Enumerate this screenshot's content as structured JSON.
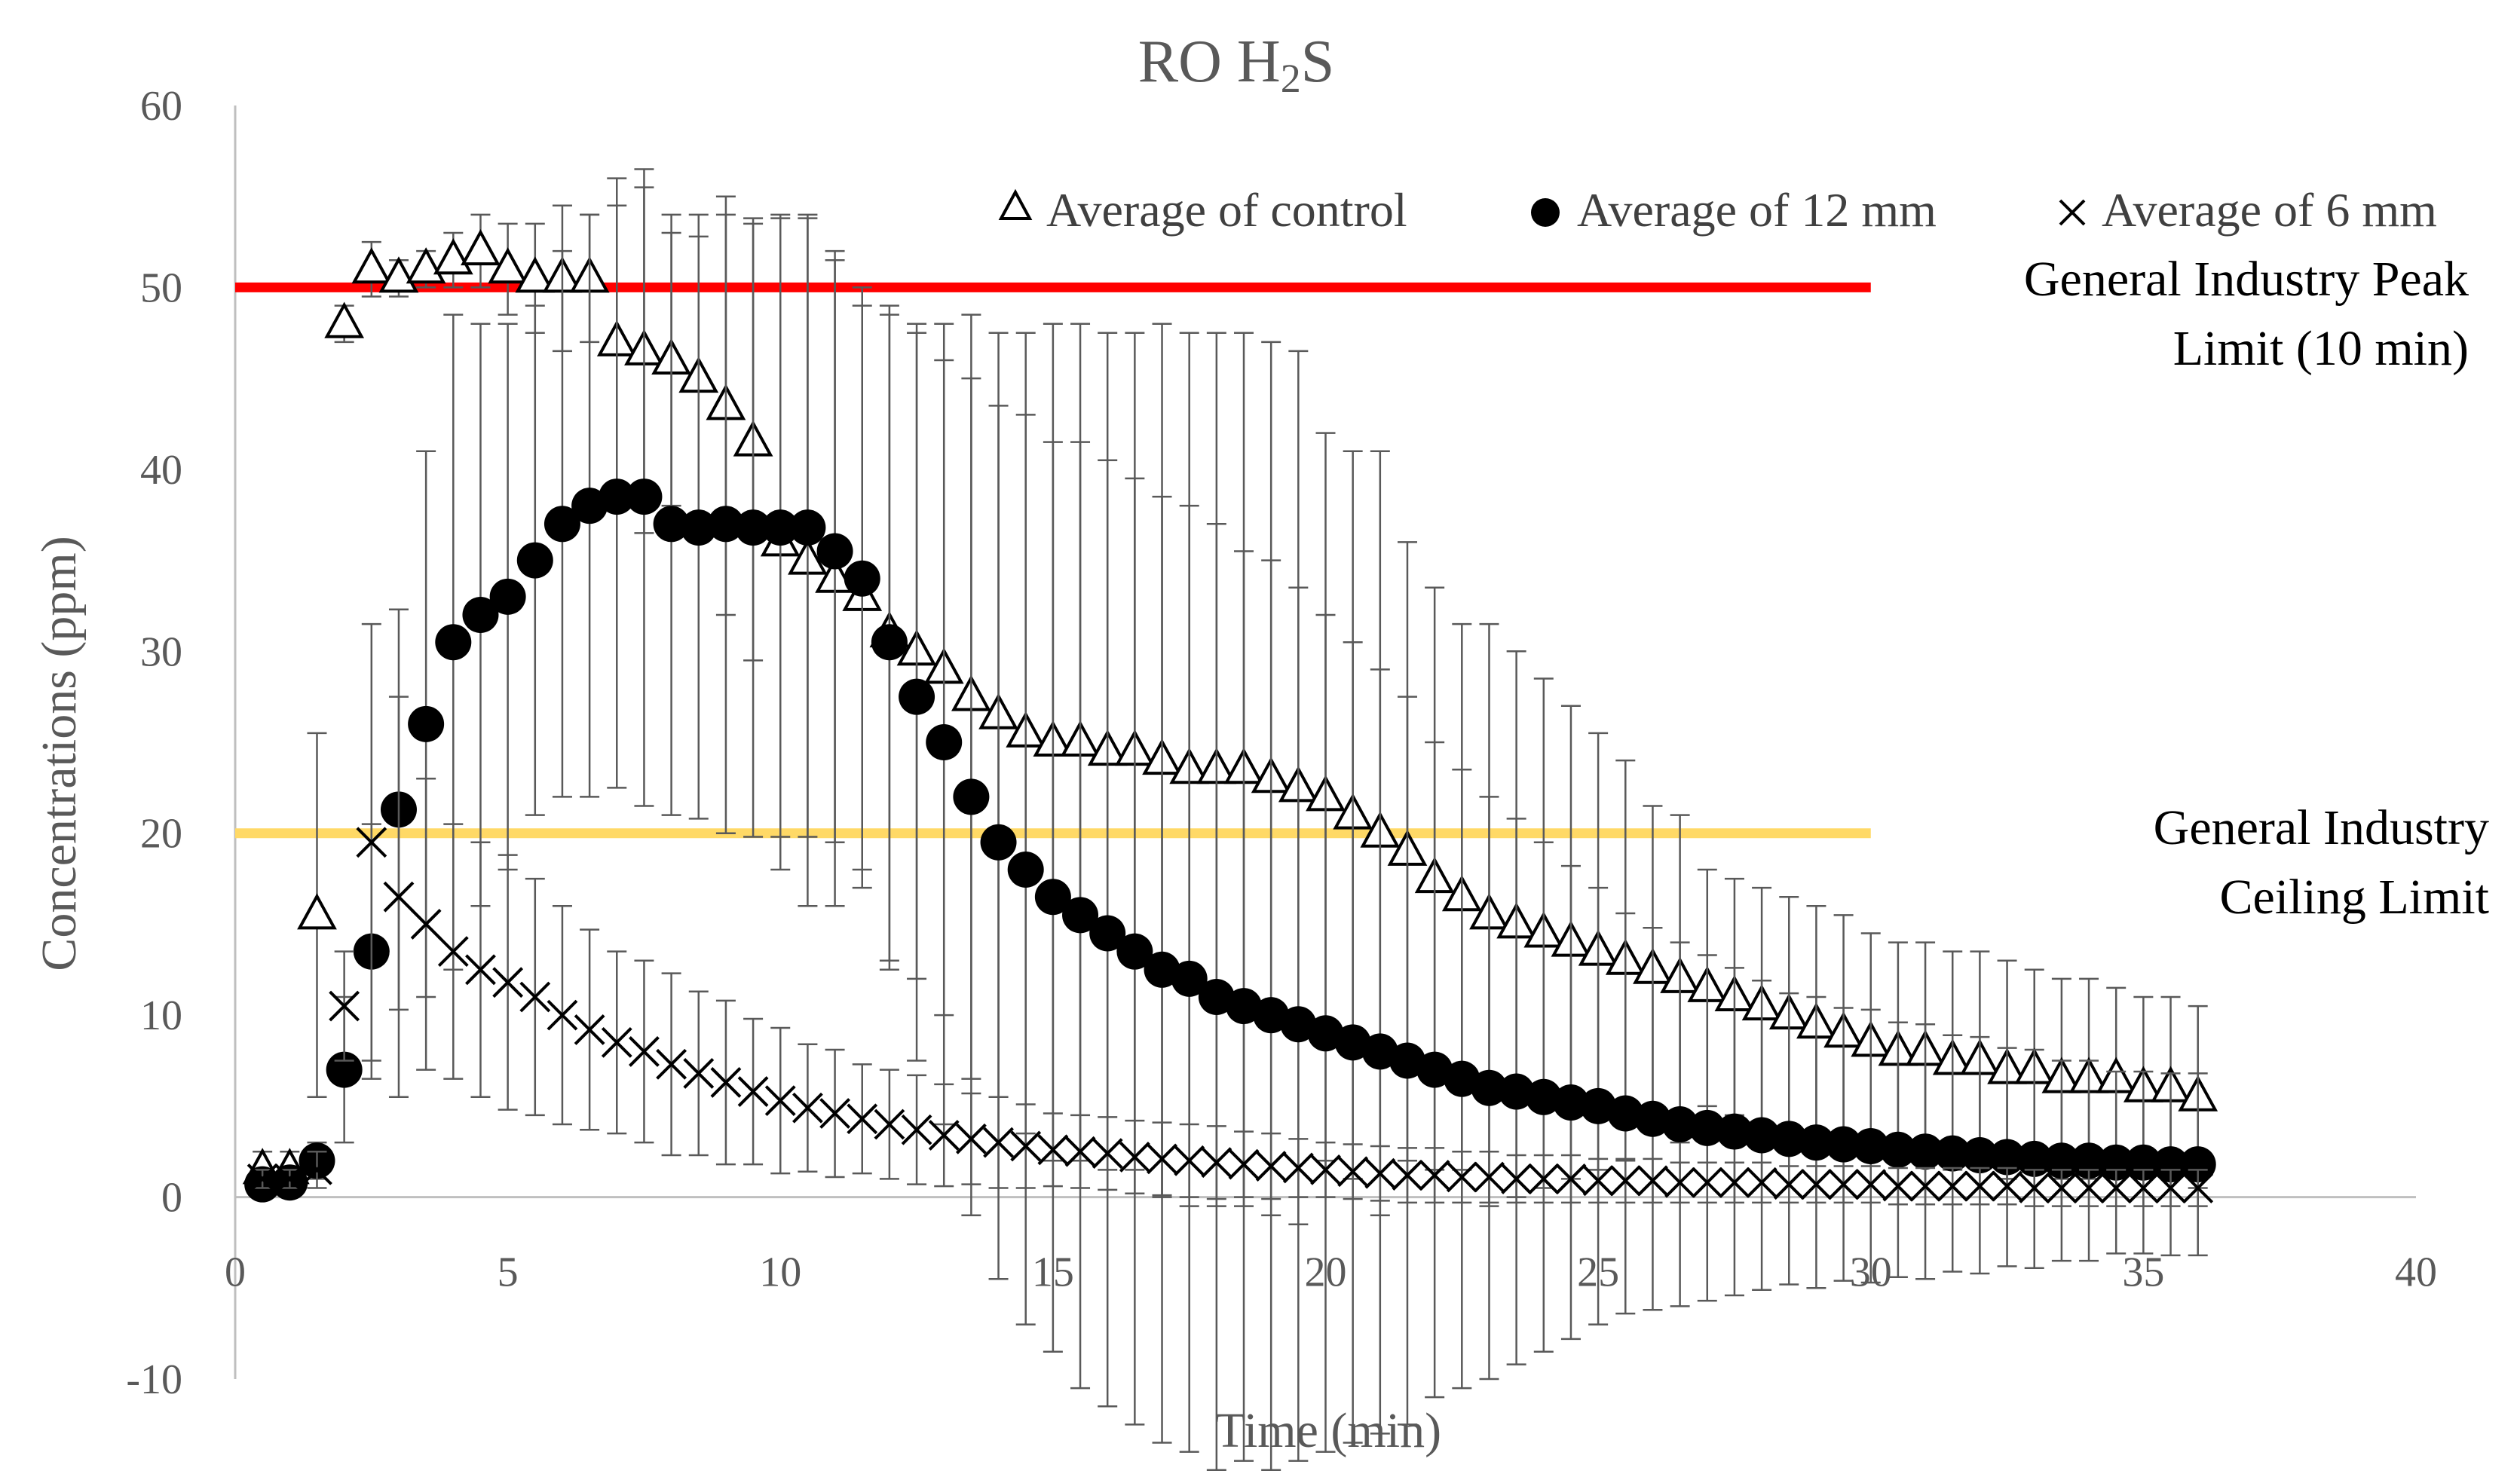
{
  "chart_data": {
    "type": "scatter",
    "title": "RO H",
    "title_subscript": "2",
    "title_suffix": "S",
    "xlabel": "Time (min)",
    "ylabel": "Concentrations (ppm)",
    "xlim": [
      0,
      40
    ],
    "ylim": [
      -10,
      60
    ],
    "xticks": [
      0,
      5,
      10,
      15,
      20,
      25,
      30,
      35,
      40
    ],
    "yticks": [
      -10,
      0,
      10,
      20,
      30,
      40,
      50,
      60
    ],
    "grid": false,
    "legend_position": "top-right",
    "reference_lines": [
      {
        "name": "general-industry-peak-limit",
        "y": 50,
        "x_range": [
          0,
          30
        ],
        "color": "#ff0000",
        "label_lines": [
          "General Industry Peak",
          "Limit (10 min)"
        ]
      },
      {
        "name": "general-industry-ceiling-limit",
        "y": 20,
        "x_range": [
          0,
          30
        ],
        "color": "#ffd966",
        "label_lines": [
          "General Industry",
          "Ceiling Limit"
        ]
      }
    ],
    "series": [
      {
        "name": "Average of control",
        "marker": "triangle",
        "x": [
          0.5,
          1,
          1.5,
          2,
          2.5,
          3,
          3.5,
          4,
          4.5,
          5,
          5.5,
          6,
          6.5,
          7,
          7.5,
          8,
          8.5,
          9,
          9.5,
          10,
          10.5,
          11,
          11.5,
          12,
          12.5,
          13,
          13.5,
          14,
          14.5,
          15,
          15.5,
          16,
          16.5,
          17,
          17.5,
          18,
          18.5,
          19,
          19.5,
          20,
          20.5,
          21,
          21.5,
          22,
          22.5,
          23,
          23.5,
          24,
          24.5,
          25,
          25.5,
          26,
          26.5,
          27,
          27.5,
          28,
          28.5,
          29,
          29.5,
          30,
          30.5,
          31,
          31.5,
          32,
          32.5,
          33,
          33.5,
          34,
          34.5,
          35,
          35.5,
          36
        ],
        "y": [
          1.5,
          1.5,
          15.5,
          48,
          51,
          50.5,
          51,
          51.5,
          52,
          51,
          50.5,
          50.5,
          50.5,
          47,
          46.5,
          46,
          45,
          43.5,
          41.5,
          36,
          35,
          34,
          33,
          31,
          30,
          29,
          27.5,
          26.5,
          25.5,
          25,
          25,
          24.5,
          24.5,
          24,
          23.5,
          23.5,
          23.5,
          23,
          22.5,
          22,
          21,
          20,
          19,
          17.5,
          16.5,
          15.5,
          15,
          14.5,
          14,
          13.5,
          13,
          12.5,
          12,
          11.5,
          11,
          10.5,
          10,
          9.5,
          9,
          8.5,
          8,
          8,
          7.5,
          7.5,
          7,
          7,
          6.5,
          6.5,
          6.5,
          6,
          6,
          5.5
        ],
        "err": [
          1,
          1,
          10,
          1,
          1.5,
          1,
          1,
          1.5,
          2,
          2.5,
          3,
          4,
          3.5,
          9,
          10,
          8,
          9,
          11.5,
          12,
          18,
          19,
          18,
          16,
          18,
          18,
          19,
          21,
          21,
          22,
          23,
          23,
          23,
          23,
          24,
          24,
          24,
          24,
          24,
          24,
          20,
          20,
          21,
          17,
          16,
          15,
          16,
          15,
          14,
          13,
          12,
          11,
          9,
          9,
          6.5,
          6.5,
          6.5,
          6.5,
          6.5,
          6.5,
          6,
          6,
          6,
          6,
          6,
          6,
          5.5,
          5.5,
          5.5,
          5,
          5,
          5,
          5
        ]
      },
      {
        "name": "Average of 12 mm",
        "marker": "circle",
        "x": [
          0.5,
          1,
          1.5,
          2,
          2.5,
          3,
          3.5,
          4,
          4.5,
          5,
          5.5,
          6,
          6.5,
          7,
          7.5,
          8,
          8.5,
          9,
          9.5,
          10,
          10.5,
          11,
          11.5,
          12,
          12.5,
          13,
          13.5,
          14,
          14.5,
          15,
          15.5,
          16,
          16.5,
          17,
          17.5,
          18,
          18.5,
          19,
          19.5,
          20,
          20.5,
          21,
          21.5,
          22,
          22.5,
          23,
          23.5,
          24,
          24.5,
          25,
          25.5,
          26,
          26.5,
          27,
          27.5,
          28,
          28.5,
          29,
          29.5,
          30,
          30.5,
          31,
          31.5,
          32,
          32.5,
          33,
          33.5,
          34,
          34.5,
          35,
          35.5,
          36
        ],
        "y": [
          0.7,
          0.8,
          2,
          7,
          13.5,
          21.3,
          26,
          30.5,
          32,
          33,
          35,
          37,
          38,
          38.5,
          38.5,
          37,
          36.8,
          37,
          36.8,
          36.8,
          36.8,
          35.5,
          34,
          30.5,
          27.5,
          25,
          22,
          19.5,
          18,
          16.5,
          15.5,
          14.5,
          13.5,
          12.5,
          12,
          11,
          10.5,
          10,
          9.5,
          9,
          8.5,
          8,
          7.5,
          7,
          6.5,
          6,
          5.8,
          5.5,
          5.2,
          5,
          4.6,
          4.3,
          4,
          3.8,
          3.6,
          3.4,
          3.2,
          3,
          2.9,
          2.8,
          2.6,
          2.5,
          2.4,
          2.3,
          2.2,
          2.1,
          2,
          2,
          1.9,
          1.9,
          1.8,
          1.8
        ],
        "err": [
          0.5,
          0.5,
          1,
          4,
          7,
          11,
          15,
          18,
          16,
          15,
          14,
          15,
          16,
          16,
          17,
          16,
          16,
          17,
          17,
          17,
          17,
          16,
          16,
          18,
          20,
          21,
          23,
          24,
          25,
          25,
          26,
          26,
          26,
          26,
          26,
          26,
          25,
          25,
          24,
          23,
          22,
          21,
          20,
          18,
          17,
          16,
          15,
          14,
          13,
          12,
          11,
          10.5,
          10,
          9.5,
          9,
          8.5,
          8,
          8,
          7.5,
          7.5,
          7,
          7,
          6.5,
          6.5,
          6,
          6,
          5.5,
          5.5,
          5,
          5,
          5,
          5
        ]
      },
      {
        "name": "Average of 6 mm",
        "marker": "x",
        "x": [
          0.5,
          1,
          1.5,
          2,
          2.5,
          3,
          3.5,
          4,
          4.5,
          5,
          5.5,
          6,
          6.5,
          7,
          7.5,
          8,
          8.5,
          9,
          9.5,
          10,
          10.5,
          11,
          11.5,
          12,
          12.5,
          13,
          13.5,
          14,
          14.5,
          15,
          15.5,
          16,
          16.5,
          17,
          17.5,
          18,
          18.5,
          19,
          19.5,
          20,
          20.5,
          21,
          21.5,
          22,
          22.5,
          23,
          23.5,
          24,
          24.5,
          25,
          25.5,
          26,
          26.5,
          27,
          27.5,
          28,
          28.5,
          29,
          29.5,
          30,
          30.5,
          31,
          31.5,
          32,
          32.5,
          33,
          33.5,
          34,
          34.5,
          35,
          35.5,
          36
        ],
        "y": [
          1,
          1,
          1.5,
          10.5,
          19.5,
          16.5,
          15,
          13.5,
          12.5,
          11.8,
          11,
          10,
          9.2,
          8.5,
          8,
          7.3,
          6.8,
          6.3,
          5.8,
          5.3,
          4.9,
          4.6,
          4.3,
          4,
          3.7,
          3.4,
          3.2,
          3,
          2.8,
          2.6,
          2.5,
          2.4,
          2.2,
          2.1,
          2,
          1.9,
          1.8,
          1.7,
          1.6,
          1.5,
          1.4,
          1.3,
          1.2,
          1.2,
          1.1,
          1.1,
          1,
          1,
          1,
          0.9,
          0.9,
          0.9,
          0.8,
          0.8,
          0.8,
          0.8,
          0.7,
          0.7,
          0.7,
          0.7,
          0.6,
          0.6,
          0.6,
          0.6,
          0.6,
          0.5,
          0.5,
          0.5,
          0.5,
          0.5,
          0.5,
          0.5
        ],
        "err": [
          0.5,
          0.5,
          1,
          3,
          12,
          11,
          8,
          7,
          7,
          7,
          6.5,
          6,
          5.5,
          5,
          5,
          5,
          4.5,
          4.5,
          4,
          4,
          3.5,
          3.5,
          3,
          3,
          3,
          2.8,
          2.5,
          2.5,
          2.3,
          2,
          2,
          2,
          2,
          2,
          2,
          2,
          1.8,
          1.8,
          1.6,
          1.5,
          1.5,
          1.5,
          1.5,
          1.5,
          1.4,
          1.4,
          1.3,
          1.3,
          1.3,
          1.2,
          1.2,
          1.2,
          1.1,
          1.1,
          1.1,
          1.1,
          1,
          1,
          1,
          1,
          1,
          1,
          1,
          1,
          1,
          1,
          1,
          1,
          1,
          1,
          1,
          1
        ]
      }
    ]
  }
}
